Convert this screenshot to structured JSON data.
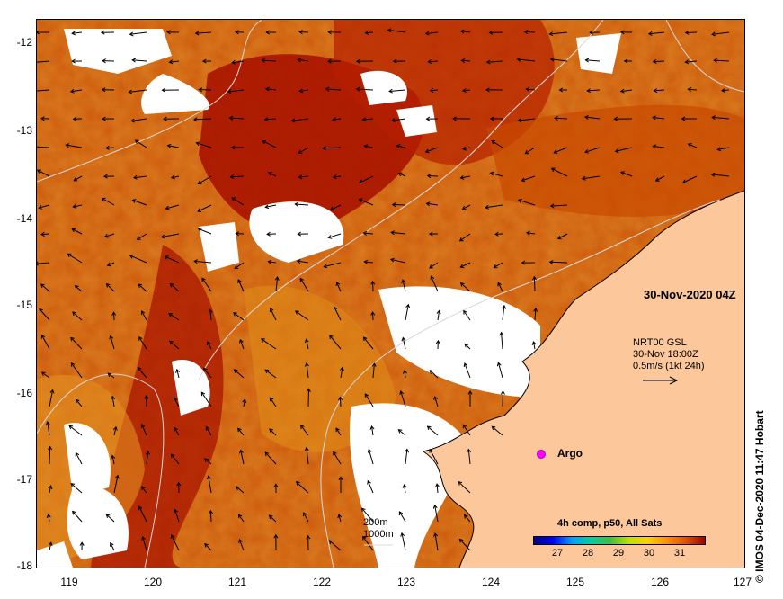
{
  "map": {
    "lat_ticks": [
      "-12",
      "-13",
      "-14",
      "-15",
      "-16",
      "-17",
      "-18"
    ],
    "lon_ticks": [
      "119",
      "120",
      "121",
      "122",
      "123",
      "124",
      "125",
      "126",
      "127"
    ],
    "lat_range": [
      -18,
      -11.7
    ],
    "lon_range": [
      118.6,
      127
    ],
    "time_label": "30-Nov-2020 04Z",
    "vector_legend": {
      "line1": "NRT00 GSL",
      "line2": "30-Nov 18:00Z",
      "line3": "0.5m/s (1kt 24h)"
    },
    "argo_label": "Argo",
    "isobath_legend": {
      "line1": "200m",
      "line2": "1000m"
    },
    "colorbar": {
      "title": "4h comp, p50, All Sats",
      "ticks": [
        "27",
        "28",
        "29",
        "30",
        "31"
      ],
      "range": [
        26.3,
        32.1
      ]
    },
    "credit": "© IMOS 04-Dec-2020 11:47 Hobart",
    "colors": {
      "land": "#fcc89b",
      "cloud": "#ffffff",
      "sst_warm": "#b01800",
      "sst_mid": "#d86a08",
      "sst_cool": "#e89a20",
      "argo": "#ff00ff"
    }
  }
}
